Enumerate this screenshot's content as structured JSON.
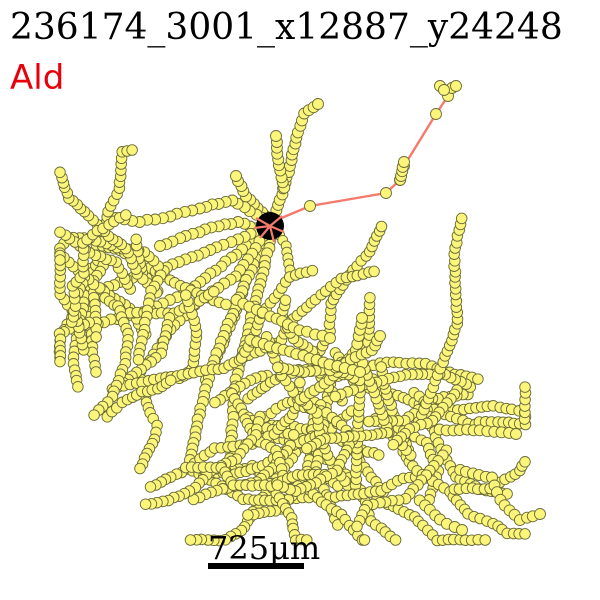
{
  "figure": {
    "title": "236174_3001_x12887_y24248",
    "subtitle": "Ald",
    "scale_bar_label": "725μm"
  },
  "colors": {
    "subtitle": "#e8000b",
    "branch": "#f47a6b",
    "node_fill": "#fbf67a",
    "node_stroke": "#6b6b3a",
    "soma": "#000000"
  }
}
